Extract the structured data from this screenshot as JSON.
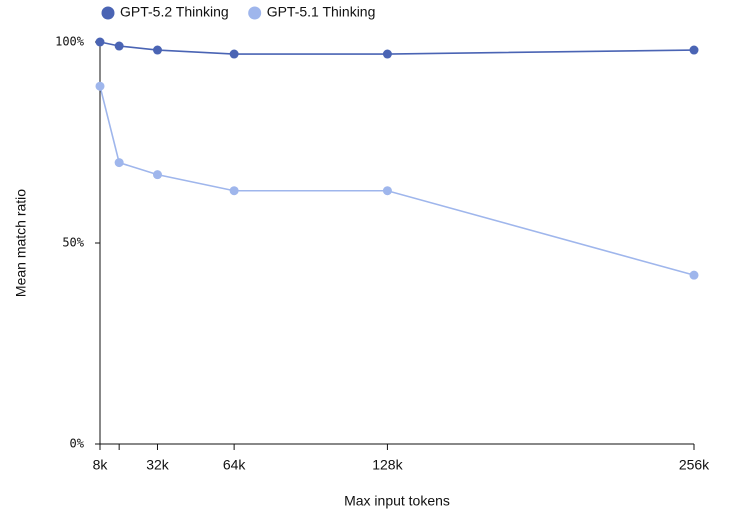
{
  "chart_data": {
    "type": "line",
    "x_label": "Max input tokens",
    "y_label": "Mean match ratio",
    "x": [
      8000,
      16000,
      32000,
      64000,
      128000,
      256000
    ],
    "series": [
      {
        "name": "GPT-5.2 Thinking",
        "color": "#4a64b4",
        "values": [
          100,
          99,
          98,
          97,
          97,
          98
        ]
      },
      {
        "name": "GPT-5.1 Thinking",
        "color": "#9fb6ec",
        "values": [
          89,
          70,
          67,
          63,
          63,
          42
        ]
      }
    ],
    "xlim": [
      8000,
      256000
    ],
    "xticks": [
      {
        "value": 8000,
        "label": "8k"
      },
      {
        "value": 16000,
        "label": null
      },
      {
        "value": 32000,
        "label": "32k"
      },
      {
        "value": 64000,
        "label": "64k"
      },
      {
        "value": 128000,
        "label": "128k"
      },
      {
        "value": 256000,
        "label": "256k"
      }
    ],
    "ylim": [
      0,
      100
    ],
    "yticks": [
      {
        "value": 0,
        "label": "0%"
      },
      {
        "value": 50,
        "label": "50%"
      },
      {
        "value": 100,
        "label": "100%"
      }
    ],
    "grid": false,
    "legend": "top"
  }
}
